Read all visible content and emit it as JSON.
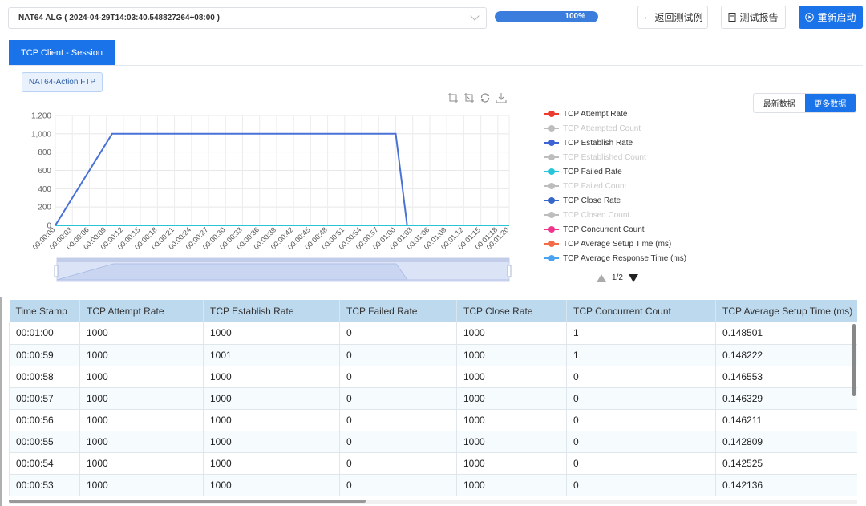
{
  "header": {
    "test_title": "NAT64 ALG ( 2024-04-29T14:03:40.548827264+08:00 )",
    "progress_label": "100%",
    "progress_value": 100,
    "back_label": "返回测试例",
    "report_label": "测试报告",
    "restart_label": "重新启动"
  },
  "tabs": [
    {
      "label": "TCP Client - Session"
    }
  ],
  "filter_chip": "NAT64-Action FTP",
  "data_toggle": {
    "latest_label": "最新数据",
    "more_label": "更多数据"
  },
  "colors": {
    "accent": "#1a73e8",
    "series_establish": "#4a72d6",
    "series_failed": "#29c5d7",
    "header_bg": "#bdd9ee"
  },
  "chart_data": {
    "type": "line",
    "ylim": [
      0,
      1200
    ],
    "y_ticks": [
      "0",
      "200",
      "400",
      "600",
      "800",
      "1,000",
      "1,200"
    ],
    "x_ticks": [
      "00:00:00",
      "00:00:03",
      "00:00:06",
      "00:00:09",
      "00:00:12",
      "00:00:15",
      "00:00:18",
      "00:00:21",
      "00:00:24",
      "00:00:27",
      "00:00:30",
      "00:00:33",
      "00:00:36",
      "00:00:39",
      "00:00:42",
      "00:00:45",
      "00:00:48",
      "00:00:51",
      "00:00:54",
      "00:00:57",
      "00:01:00",
      "00:01:03",
      "00:01:06",
      "00:01:09",
      "00:01:12",
      "00:01:15",
      "00:01:18",
      "00:01:20"
    ],
    "x_max_seconds": 80,
    "series": [
      {
        "name": "TCP Establish Rate",
        "color": "#4a72d6",
        "points": [
          [
            0,
            0
          ],
          [
            10,
            1000
          ],
          [
            60,
            1000
          ],
          [
            62,
            0
          ],
          [
            80,
            0
          ]
        ]
      },
      {
        "name": "TCP Failed Rate",
        "color": "#29c5d7",
        "points": [
          [
            0,
            0
          ],
          [
            80,
            0
          ]
        ]
      }
    ],
    "legend_position": "right",
    "legend": [
      {
        "label": "TCP Attempt Rate",
        "color": "#ee3b2e",
        "enabled": true
      },
      {
        "label": "TCP Attempted Count",
        "color": "#bdbdbd",
        "enabled": false
      },
      {
        "label": "TCP Establish Rate",
        "color": "#3e63d4",
        "enabled": true
      },
      {
        "label": "TCP Established Count",
        "color": "#bdbdbd",
        "enabled": false
      },
      {
        "label": "TCP Failed Rate",
        "color": "#26c6da",
        "enabled": true
      },
      {
        "label": "TCP Failed Count",
        "color": "#bdbdbd",
        "enabled": false
      },
      {
        "label": "TCP Close Rate",
        "color": "#3566c9",
        "enabled": true
      },
      {
        "label": "TCP Closed Count",
        "color": "#bdbdbd",
        "enabled": false
      },
      {
        "label": "TCP Concurrent Count",
        "color": "#f0338c",
        "enabled": true
      },
      {
        "label": "TCP Average Setup Time (ms)",
        "color": "#f46b45",
        "enabled": true
      },
      {
        "label": "TCP Average Response Time (ms)",
        "color": "#4aa3f0",
        "enabled": true
      }
    ],
    "legend_page": "1/2"
  },
  "table": {
    "columns": [
      "Time Stamp",
      "TCP Attempt Rate",
      "TCP Establish Rate",
      "TCP Failed Rate",
      "TCP Close Rate",
      "TCP Concurrent Count",
      "TCP Average Setup Time (ms)"
    ],
    "rows": [
      [
        "00:01:00",
        "1000",
        "1000",
        "0",
        "1000",
        "1",
        "0.148501"
      ],
      [
        "00:00:59",
        "1000",
        "1001",
        "0",
        "1000",
        "1",
        "0.148222"
      ],
      [
        "00:00:58",
        "1000",
        "1000",
        "0",
        "1000",
        "0",
        "0.146553"
      ],
      [
        "00:00:57",
        "1000",
        "1000",
        "0",
        "1000",
        "0",
        "0.146329"
      ],
      [
        "00:00:56",
        "1000",
        "1000",
        "0",
        "1000",
        "0",
        "0.146211"
      ],
      [
        "00:00:55",
        "1000",
        "1000",
        "0",
        "1000",
        "0",
        "0.142809"
      ],
      [
        "00:00:54",
        "1000",
        "1000",
        "0",
        "1000",
        "0",
        "0.142525"
      ],
      [
        "00:00:53",
        "1000",
        "1000",
        "0",
        "1000",
        "0",
        "0.142136"
      ]
    ]
  }
}
